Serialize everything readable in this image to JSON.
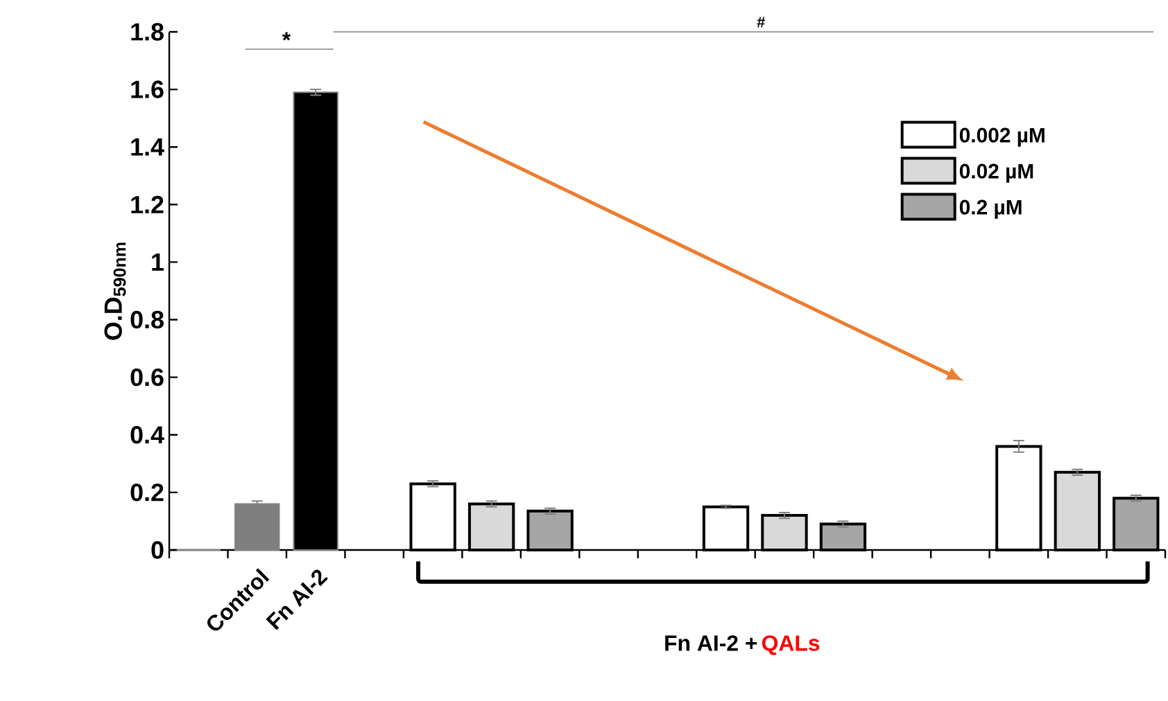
{
  "chart_data": {
    "type": "bar",
    "ylabel": "O.D$_{590nm}$",
    "categories": [
      null,
      "Control",
      "Fn AI-2",
      null,
      null,
      null,
      null,
      null,
      null,
      null,
      null,
      null,
      null,
      null,
      null,
      null,
      null
    ],
    "series": [
      {
        "color": "#ffffff",
        "values": [
          0,
          null,
          null,
          null,
          null,
          null,
          null,
          null,
          null,
          null,
          null,
          null,
          null,
          null,
          null,
          null,
          null
        ]
      },
      {
        "color": "#7f7f7f",
        "values": [
          null,
          0.16,
          null,
          null,
          null,
          null,
          null,
          null,
          null,
          null,
          null,
          null,
          null,
          null,
          null,
          null,
          null
        ],
        "errors": [
          null,
          0.01,
          null,
          null,
          null,
          null,
          null,
          null,
          null,
          null,
          null,
          null,
          null,
          null,
          null,
          null,
          null
        ]
      },
      {
        "color": "#000000",
        "values": [
          null,
          null,
          1.59,
          null,
          null,
          null,
          null,
          null,
          null,
          null,
          null,
          null,
          null,
          null,
          null,
          null,
          null
        ],
        "errors": [
          null,
          null,
          0.01,
          null,
          null,
          null,
          null,
          null,
          null,
          null,
          null,
          null,
          null,
          null,
          null,
          null,
          null
        ]
      },
      {
        "name": "0.002 µM",
        "color": "#ffffff",
        "values": [
          null,
          null,
          null,
          null,
          0.23,
          null,
          null,
          null,
          null,
          0.15,
          null,
          null,
          null,
          null,
          0.36,
          null,
          null
        ],
        "errors": [
          null,
          null,
          null,
          null,
          0.01,
          null,
          null,
          null,
          null,
          0.005,
          null,
          null,
          null,
          null,
          0.02,
          null,
          null
        ]
      },
      {
        "name": "0.02 µM",
        "color": "#d9d9d9",
        "values": [
          null,
          null,
          null,
          null,
          null,
          0.16,
          null,
          null,
          null,
          null,
          0.12,
          null,
          null,
          null,
          null,
          0.27,
          null
        ],
        "errors": [
          null,
          null,
          null,
          null,
          null,
          0.01,
          null,
          null,
          null,
          null,
          0.01,
          null,
          null,
          null,
          null,
          0.01,
          null
        ]
      },
      {
        "name": "0.2 µM",
        "color": "#a6a6a6",
        "values": [
          null,
          null,
          null,
          null,
          null,
          null,
          0.135,
          null,
          null,
          null,
          null,
          0.09,
          null,
          null,
          null,
          null,
          0.18
        ],
        "errors": [
          null,
          null,
          null,
          null,
          null,
          null,
          0.01,
          null,
          null,
          null,
          null,
          0.01,
          null,
          null,
          null,
          null,
          0.01
        ]
      }
    ],
    "ylim": [
      0,
      1.8
    ],
    "yticks": [
      0,
      0.2,
      0.4,
      0.6,
      0.8,
      1,
      1.2,
      1.4,
      1.6,
      1.8
    ],
    "annotations": [
      "*",
      "#",
      "Fn AI-2 +",
      "QALs"
    ],
    "legend": "top right",
    "grid": false
  }
}
